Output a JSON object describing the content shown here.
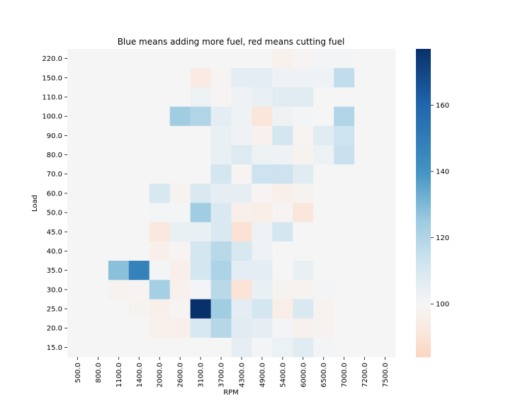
{
  "chart_data": {
    "type": "heatmap",
    "title": "Blue means adding more fuel, red means cutting fuel",
    "xlabel": "RPM",
    "ylabel": "Load",
    "x": [
      "500.0",
      "800.0",
      "1100.0",
      "1400.0",
      "2000.0",
      "2600.0",
      "3100.0",
      "3700.0",
      "4300.0",
      "4900.0",
      "5400.0",
      "6000.0",
      "6500.0",
      "7000.0",
      "7200.0",
      "7500.0"
    ],
    "y": [
      "220.0",
      "150.0",
      "110.0",
      "100.0",
      "90.0",
      "80.0",
      "70.0",
      "60.0",
      "50.0",
      "45.0",
      "40.0",
      "35.0",
      "30.0",
      "25.0",
      "20.0",
      "15.0"
    ],
    "values": [
      [
        100,
        100,
        100,
        100,
        100,
        100,
        100,
        100,
        100,
        100,
        97,
        99,
        101,
        101,
        100,
        100
      ],
      [
        100,
        100,
        100,
        100,
        100,
        100,
        94,
        99,
        106,
        106,
        102,
        102,
        102,
        116,
        100,
        100
      ],
      [
        100,
        100,
        100,
        100,
        100,
        100,
        103,
        99,
        102,
        104,
        107,
        107,
        100,
        100,
        100,
        100
      ],
      [
        100,
        100,
        100,
        100,
        100,
        124,
        120,
        106,
        102,
        91,
        102,
        101,
        100,
        120,
        100,
        100
      ],
      [
        100,
        100,
        100,
        100,
        100,
        100,
        100,
        104,
        102,
        97,
        111,
        99,
        107,
        113,
        100,
        100
      ],
      [
        100,
        100,
        100,
        100,
        100,
        100,
        100,
        104,
        108,
        103,
        102,
        98,
        103,
        114,
        100,
        100
      ],
      [
        100,
        100,
        100,
        100,
        100,
        100,
        100,
        111,
        99,
        113,
        113,
        107,
        100,
        100,
        100,
        100
      ],
      [
        100,
        100,
        100,
        100,
        110,
        98,
        109,
        105,
        105,
        99,
        96,
        98,
        100,
        100,
        100,
        100
      ],
      [
        100,
        100,
        100,
        100,
        101,
        101,
        124,
        109,
        96,
        95,
        99,
        91,
        100,
        100,
        100,
        100
      ],
      [
        100,
        100,
        100,
        100,
        92,
        104,
        104,
        109,
        89,
        103,
        111,
        100,
        100,
        100,
        100,
        100
      ],
      [
        100,
        100,
        100,
        100,
        96,
        99,
        111,
        118,
        110,
        103,
        100,
        100,
        100,
        100,
        100,
        100
      ],
      [
        100,
        100,
        128,
        148,
        101,
        96,
        111,
        121,
        106,
        106,
        100,
        104,
        100,
        100,
        100,
        100
      ],
      [
        100,
        100,
        98,
        99,
        123,
        97,
        101,
        118,
        90,
        104,
        98,
        98,
        101,
        100,
        100,
        100
      ],
      [
        100,
        100,
        100,
        98,
        96,
        99,
        177,
        124,
        106,
        111,
        95,
        109,
        98,
        100,
        100,
        100
      ],
      [
        100,
        100,
        100,
        100,
        97,
        96,
        110,
        119,
        107,
        105,
        101,
        97,
        98,
        100,
        100,
        100
      ],
      [
        100,
        100,
        100,
        100,
        100,
        100,
        100,
        100,
        105,
        101,
        103,
        107,
        101,
        100,
        100,
        100
      ]
    ],
    "vmin": 84,
    "vmax": 177,
    "colormap": "RdBu",
    "colorbar_ticks": [
      100,
      120,
      140,
      160
    ],
    "colors": {
      "low": "#fcd5c0",
      "mid": "#f5f5f5",
      "high": "#08306b"
    }
  }
}
